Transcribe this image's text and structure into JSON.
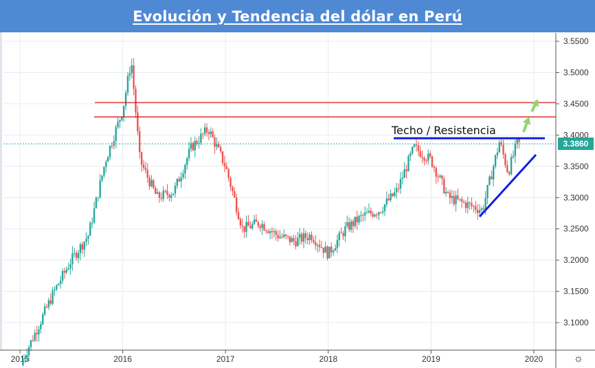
{
  "header": {
    "title": "Evolución y Tendencia del dólar en Perú"
  },
  "annotations": {
    "resistance_label": "Techo / Resistencia"
  },
  "current_price": {
    "label": "3.3860",
    "value": 3.386
  },
  "colors": {
    "header_bg": "#5089d3",
    "up": "#26a69a",
    "down": "#ef5350",
    "resistance_lines": "#e00000",
    "trend_lines": "#0f1fe0",
    "arrows": "#8fd66e",
    "grid": "#e4ecf2"
  },
  "settings_icon": "gear-icon",
  "chart_data": {
    "type": "candlestick",
    "title": "Evolución y Tendencia del dólar en Perú",
    "xlabel": "",
    "ylabel": "",
    "ylim": [
      3.06,
      3.57
    ],
    "grid": true,
    "y_ticks": [
      "3.5500",
      "3.5000",
      "3.4500",
      "3.4000",
      "3.3500",
      "3.3000",
      "3.2500",
      "3.2000",
      "3.1500",
      "3.1000"
    ],
    "x_ticks": [
      "2015",
      "2016",
      "2017",
      "2018",
      "2019",
      "2020"
    ],
    "horizontal_lines": [
      {
        "name": "resistance-high",
        "value": 3.452,
        "color": "#e00000"
      },
      {
        "name": "resistance-low",
        "value": 3.429,
        "color": "#e00000"
      },
      {
        "name": "ceiling",
        "value": 3.392,
        "color": "#0f1fe0",
        "label": "Techo / Resistencia"
      }
    ],
    "trend_line": {
      "from": [
        "2019-06",
        3.27
      ],
      "to": [
        "2020-01",
        3.368
      ]
    },
    "last_close": 3.386,
    "series_monthly_close": {
      "x": [
        "2015-03",
        "2015-05",
        "2015-07",
        "2015-09",
        "2015-11",
        "2016-01",
        "2016-02",
        "2016-03",
        "2016-05",
        "2016-07",
        "2016-09",
        "2016-11",
        "2017-01",
        "2017-03",
        "2017-05",
        "2017-07",
        "2017-09",
        "2017-11",
        "2018-01",
        "2018-03",
        "2018-05",
        "2018-07",
        "2018-09",
        "2018-11",
        "2019-01",
        "2019-03",
        "2019-05",
        "2019-07",
        "2019-09",
        "2019-10",
        "2019-11"
      ],
      "values": [
        3.09,
        3.15,
        3.2,
        3.24,
        3.36,
        3.44,
        3.52,
        3.36,
        3.3,
        3.31,
        3.38,
        3.41,
        3.35,
        3.25,
        3.26,
        3.24,
        3.23,
        3.24,
        3.21,
        3.25,
        3.27,
        3.28,
        3.31,
        3.38,
        3.36,
        3.3,
        3.29,
        3.28,
        3.39,
        3.34,
        3.386
      ]
    }
  }
}
